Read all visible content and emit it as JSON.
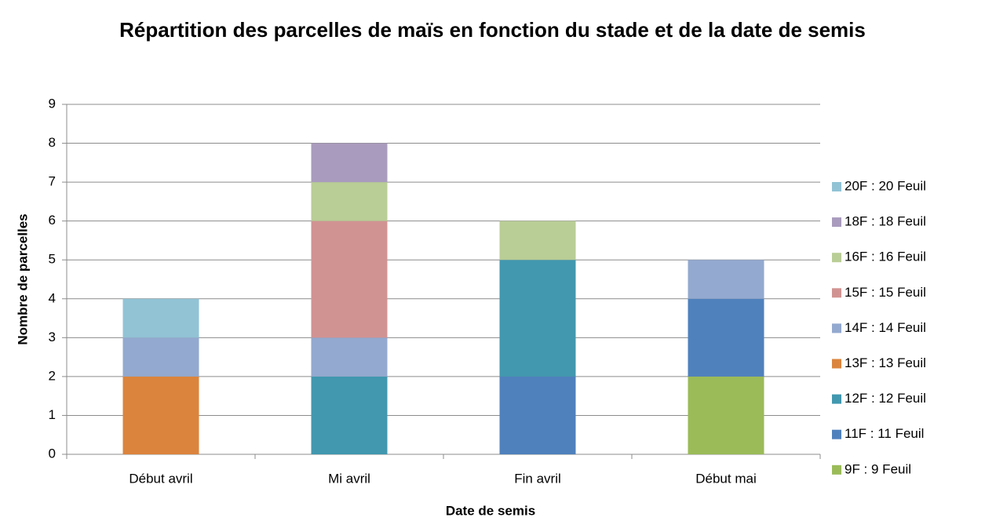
{
  "chart_data": {
    "type": "stacked_bar",
    "title": "Répartition des parcelles de maïs en fonction du stade et de la date de semis",
    "x_label": "Date de semis",
    "y_label": "Nombre de parcelles",
    "categories": [
      "Début avril",
      "Mi avril",
      "Fin avril",
      "Début mai"
    ],
    "series": [
      {
        "name": "9F : 9 Feuil",
        "color": "#9bbb59",
        "values": [
          0,
          0,
          0,
          2
        ]
      },
      {
        "name": "11F : 11 Feuil",
        "color": "#4f81bd",
        "values": [
          0,
          0,
          2,
          2
        ]
      },
      {
        "name": "12F : 12 Feuil",
        "color": "#4198af",
        "values": [
          0,
          2,
          3,
          0
        ]
      },
      {
        "name": "13F : 13 Feuil",
        "color": "#db843d",
        "values": [
          2,
          0,
          0,
          0
        ]
      },
      {
        "name": "14F : 14 Feuil",
        "color": "#93a9cf",
        "values": [
          1,
          1,
          0,
          1
        ]
      },
      {
        "name": "15F : 15 Feuil",
        "color": "#d19392",
        "values": [
          0,
          3,
          0,
          0
        ]
      },
      {
        "name": "16F : 16 Feuil",
        "color": "#b9cd96",
        "values": [
          0,
          1,
          1,
          0
        ]
      },
      {
        "name": "18F : 18 Feuil",
        "color": "#a99bbd",
        "values": [
          0,
          1,
          0,
          0
        ]
      },
      {
        "name": "20F : 20 Feuil",
        "color": "#91c3d5",
        "values": [
          1,
          0,
          0,
          0
        ]
      }
    ],
    "ylim": [
      0,
      9
    ],
    "yticks": [
      0,
      1,
      2,
      3,
      4,
      5,
      6,
      7,
      8,
      9
    ],
    "grid": true,
    "legend": "right"
  }
}
